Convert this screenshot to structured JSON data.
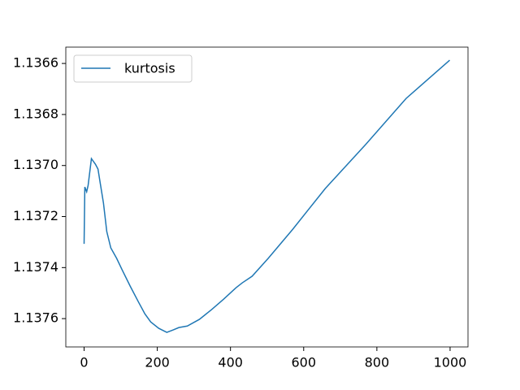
{
  "chart_data": {
    "type": "line",
    "x": [
      0,
      2,
      7,
      11,
      20,
      31,
      38,
      44,
      53,
      62,
      73,
      89,
      104,
      126,
      149,
      166,
      182,
      204,
      226,
      242,
      259,
      282,
      315,
      348,
      381,
      415,
      432,
      459,
      503,
      570,
      659,
      769,
      880,
      999
    ],
    "series": [
      {
        "name": "kurtosis",
        "color": "#1f77b4",
        "values": [
          1.137307,
          1.137084,
          1.137103,
          1.137078,
          1.136973,
          1.136995,
          1.137014,
          1.137068,
          1.137148,
          1.137259,
          1.137323,
          1.137364,
          1.137409,
          1.137473,
          1.137536,
          1.137581,
          1.137613,
          1.137638,
          1.137654,
          1.137645,
          1.137635,
          1.137629,
          1.137603,
          1.137565,
          1.137524,
          1.137479,
          1.13746,
          1.137434,
          1.137364,
          1.13725,
          1.13709,
          1.136918,
          1.136737,
          1.136587
        ]
      }
    ],
    "xlim": [
      -49.95,
      1048.95
    ],
    "xticks": [
      0,
      200,
      400,
      600,
      800,
      1000
    ],
    "ylim": [
      1.137711,
      1.136536
    ],
    "yticks": [
      1.1366,
      1.1368,
      {
        "value": 1.137,
        "label": "1.1370"
      },
      1.1372,
      1.1374,
      1.1376
    ],
    "legend": "upper left"
  }
}
